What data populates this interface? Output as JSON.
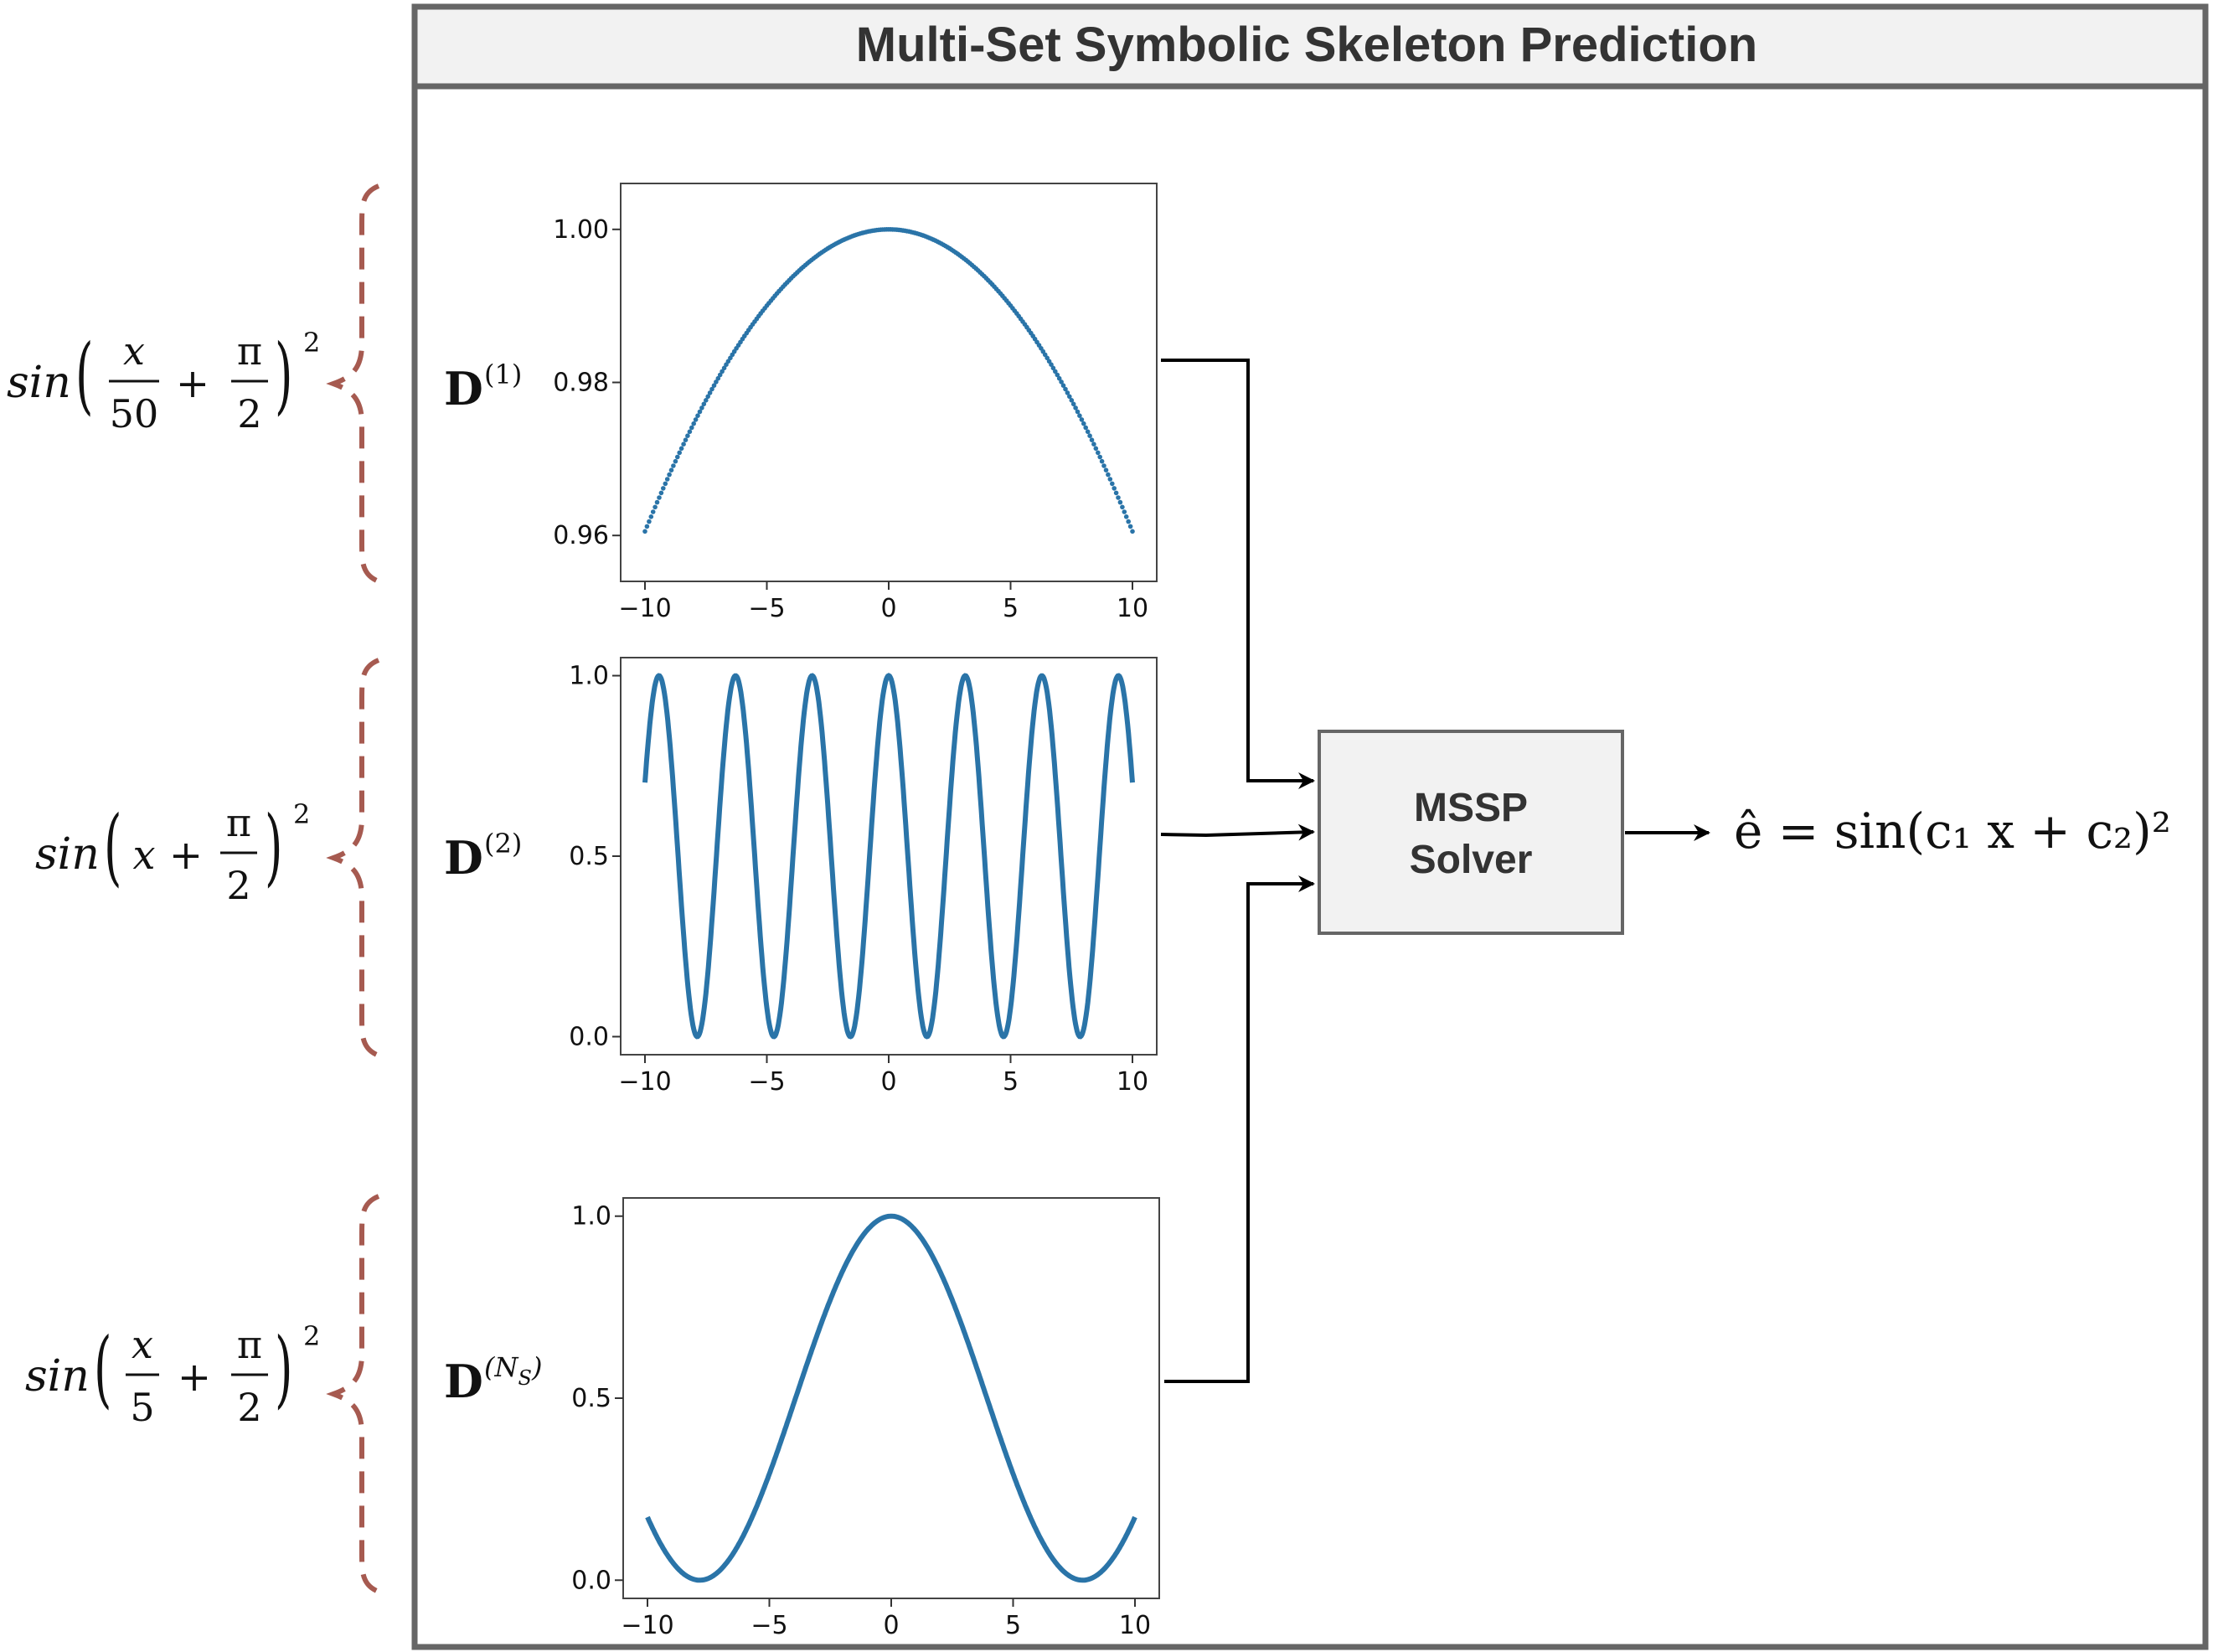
{
  "title": "Multi-Set Symbolic Skeleton Prediction",
  "solver": {
    "line1": "MSSP",
    "line2": "Solver"
  },
  "output_equation": "ê = sin(c₁ x + c₂)²",
  "colors": {
    "curve": "#2a74a8",
    "brace": "#a65a50",
    "frame": "#666666",
    "box_fill": "#f2f2f2",
    "header_fill": "#f2f2f2"
  },
  "chart_data": [
    {
      "type": "line",
      "name": "D(1)",
      "dataset_label": {
        "base": "D",
        "sup": "(1)"
      },
      "equation": {
        "prefix": "sin",
        "num": "x",
        "den": "50",
        "plus": "+",
        "pi_num": "π",
        "pi_den": "2",
        "power": "2"
      },
      "function": "sin(x/50 + pi/2)^2",
      "style": "dotted",
      "xlim": [
        -10,
        10
      ],
      "ylim": [
        0.954,
        1.006
      ],
      "xticks": [
        "−10",
        "−5",
        "0",
        "5",
        "10"
      ],
      "xtick_values": [
        -10,
        -5,
        0,
        5,
        10
      ],
      "yticks": [
        "1.00",
        "0.98",
        "0.96"
      ],
      "ytick_values": [
        1.0,
        0.98,
        0.96
      ]
    },
    {
      "type": "line",
      "name": "D(2)",
      "dataset_label": {
        "base": "D",
        "sup": "(2)"
      },
      "equation": {
        "prefix": "sin",
        "num": "x",
        "plus": "+",
        "pi_num": "π",
        "pi_den": "2",
        "power": "2"
      },
      "function": "sin(x + pi/2)^2",
      "style": "solid",
      "xlim": [
        -10,
        10
      ],
      "ylim": [
        -0.05,
        1.05
      ],
      "xticks": [
        "−10",
        "−5",
        "0",
        "5",
        "10"
      ],
      "xtick_values": [
        -10,
        -5,
        0,
        5,
        10
      ],
      "yticks": [
        "1.0",
        "0.5",
        "0.0"
      ],
      "ytick_values": [
        1.0,
        0.5,
        0.0
      ]
    },
    {
      "type": "line",
      "name": "D(NS)",
      "dataset_label": {
        "base": "D",
        "sup": "(N",
        "sub": "S",
        "close": ")"
      },
      "equation": {
        "prefix": "sin",
        "num": "x",
        "den": "5",
        "plus": "+",
        "pi_num": "π",
        "pi_den": "2",
        "power": "2"
      },
      "function": "sin(x/5 + pi/2)^2",
      "style": "solid",
      "xlim": [
        -10,
        10
      ],
      "ylim": [
        -0.05,
        1.05
      ],
      "xticks": [
        "−10",
        "−5",
        "0",
        "5",
        "10"
      ],
      "xtick_values": [
        -10,
        -5,
        0,
        5,
        10
      ],
      "yticks": [
        "1.0",
        "0.5",
        "0.0"
      ],
      "ytick_values": [
        1.0,
        0.5,
        0.0
      ]
    }
  ]
}
